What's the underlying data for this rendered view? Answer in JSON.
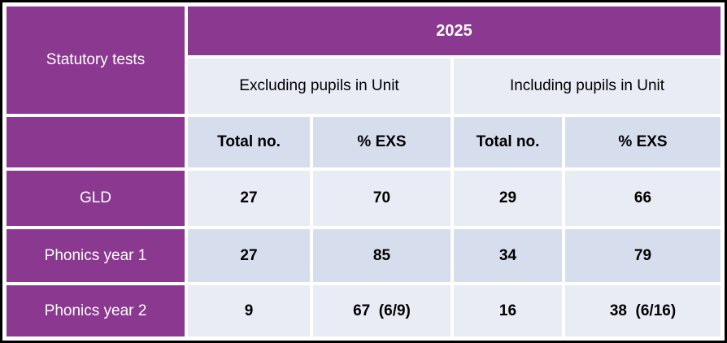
{
  "table": {
    "corner_label": "Statutory tests",
    "year_header": "2025",
    "group_headers": [
      {
        "label": "Excluding pupils in Unit"
      },
      {
        "label": "Including pupils in Unit"
      }
    ],
    "sub_headers": [
      "Total no.",
      "% EXS",
      "Total no.",
      "% EXS"
    ],
    "rows": [
      {
        "label": "GLD",
        "values": [
          "27",
          "70",
          "29",
          "66"
        ]
      },
      {
        "label": "Phonics year 1",
        "values": [
          "27",
          "85",
          "34",
          "79"
        ]
      },
      {
        "label": "Phonics year 2",
        "values": [
          "9",
          "67  (6/9)",
          "16",
          "38  (6/16)"
        ]
      }
    ],
    "colors": {
      "header_purple": "#8B3890",
      "row_light": "#E9EBF5",
      "row_dark": "#D6DEEE",
      "outer_border": "#000000",
      "header_text": "#FFFFFF",
      "body_text": "#000000"
    }
  },
  "chart_data": {
    "type": "table",
    "title": "Statutory tests",
    "year": "2025",
    "groups": [
      "Excluding pupils in Unit",
      "Including pupils in Unit"
    ],
    "sub_columns": [
      "Total no.",
      "% EXS"
    ],
    "rows": [
      {
        "label": "GLD",
        "excluding": {
          "total_no": 27,
          "pct_exs": 70
        },
        "including": {
          "total_no": 29,
          "pct_exs": 66
        }
      },
      {
        "label": "Phonics year 1",
        "excluding": {
          "total_no": 27,
          "pct_exs": 85
        },
        "including": {
          "total_no": 34,
          "pct_exs": 79
        }
      },
      {
        "label": "Phonics year 2",
        "excluding": {
          "total_no": 9,
          "pct_exs": "67 (6/9)"
        },
        "including": {
          "total_no": 16,
          "pct_exs": "38 (6/16)"
        }
      }
    ]
  }
}
